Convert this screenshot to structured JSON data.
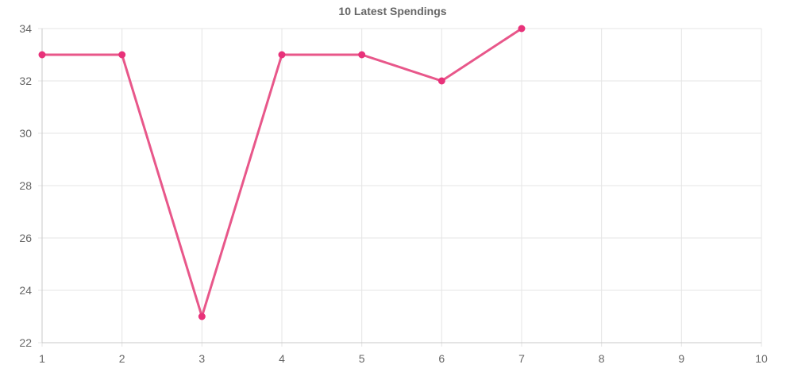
{
  "chart_data": {
    "type": "line",
    "title": "10 Latest Spendings",
    "xlabel": "",
    "ylabel": "",
    "x_ticks": [
      "1",
      "2",
      "3",
      "4",
      "5",
      "6",
      "7",
      "8",
      "9",
      "10"
    ],
    "y_ticks": [
      "22",
      "24",
      "26",
      "28",
      "30",
      "32",
      "34"
    ],
    "xlim": [
      1,
      10
    ],
    "ylim": [
      22,
      34
    ],
    "grid": true,
    "legend": "none",
    "series": [
      {
        "color": "#e8578a",
        "point_color": "#e8327a",
        "x": [
          1,
          2,
          3,
          4,
          5,
          6,
          7
        ],
        "values": [
          33,
          33,
          23,
          33,
          33,
          32,
          34
        ]
      }
    ]
  }
}
